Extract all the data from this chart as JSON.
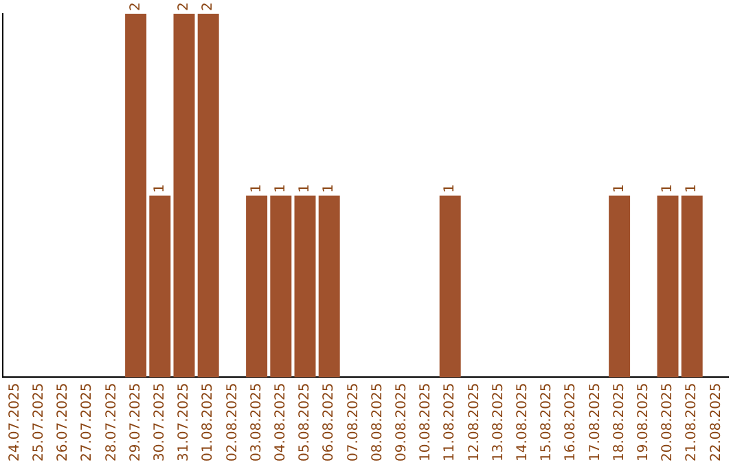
{
  "chart_data": {
    "type": "bar",
    "categories": [
      "24.07.2025",
      "25.07.2025",
      "26.07.2025",
      "27.07.2025",
      "28.07.2025",
      "29.07.2025",
      "30.07.2025",
      "31.07.2025",
      "01.08.2025",
      "02.08.2025",
      "03.08.2025",
      "04.08.2025",
      "05.08.2025",
      "06.08.2025",
      "07.08.2025",
      "08.08.2025",
      "09.08.2025",
      "10.08.2025",
      "11.08.2025",
      "12.08.2025",
      "13.08.2025",
      "14.08.2025",
      "15.08.2025",
      "16.08.2025",
      "17.08.2025",
      "18.08.2025",
      "19.08.2025",
      "20.08.2025",
      "21.08.2025",
      "22.08.2025"
    ],
    "values": [
      0,
      0,
      0,
      0,
      0,
      2,
      1,
      2,
      2,
      0,
      1,
      1,
      1,
      1,
      0,
      0,
      0,
      0,
      1,
      0,
      0,
      0,
      0,
      0,
      0,
      1,
      0,
      1,
      1,
      0
    ],
    "value_labels": [
      null,
      null,
      null,
      null,
      null,
      "2",
      "1",
      "2",
      "2",
      null,
      "1",
      "1",
      "1",
      "1",
      null,
      null,
      null,
      null,
      "1",
      null,
      null,
      null,
      null,
      null,
      null,
      "1",
      null,
      "1",
      "1",
      null
    ],
    "color": "#a0522d",
    "grid": false,
    "legend": false,
    "tick_labels": "x"
  }
}
